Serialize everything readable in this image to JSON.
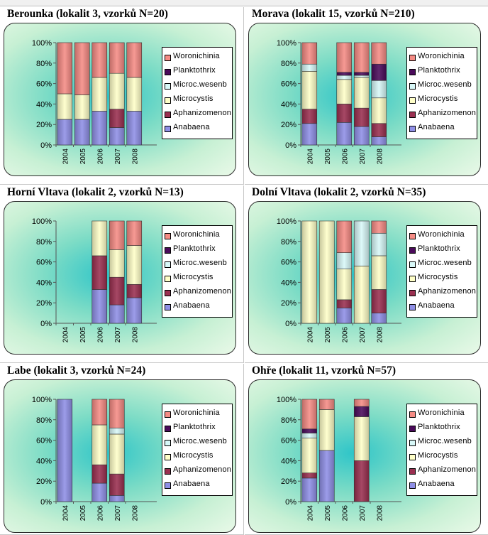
{
  "colors": {
    "Woronichinia": "#f58b84",
    "Planktothrix": "#4a0a5a",
    "Microc.wesenb": "#d8f8f8",
    "Microcystis": "#ffffc8",
    "Aphanizomenon": "#9a2f50",
    "Anabaena": "#8f8fe6"
  },
  "chart_data": [
    {
      "type": "bar",
      "stacked": true,
      "title": "Berounka (lokalit 3, vzorků N=20)",
      "categories": [
        "2004",
        "2005",
        "2006",
        "2007",
        "2008"
      ],
      "yticks": [
        "0%",
        "20%",
        "40%",
        "60%",
        "80%",
        "100%"
      ],
      "ylim": [
        0,
        100
      ],
      "legend": [
        "Woronichinia",
        "Planktothrix",
        "Microc.wesenb",
        "Microcystis",
        "Aphanizomenon",
        "Anabaena"
      ],
      "series": [
        {
          "name": "Anabaena",
          "values": [
            25,
            25,
            33,
            17,
            33
          ]
        },
        {
          "name": "Aphanizomenon",
          "values": [
            0,
            0,
            0,
            18,
            0
          ]
        },
        {
          "name": "Microcystis",
          "values": [
            25,
            24,
            33,
            35,
            33
          ]
        },
        {
          "name": "Microc.wesenb",
          "values": [
            0,
            0,
            0,
            0,
            0
          ]
        },
        {
          "name": "Planktothrix",
          "values": [
            0,
            0,
            0,
            0,
            0
          ]
        },
        {
          "name": "Woronichinia",
          "values": [
            50,
            51,
            34,
            30,
            34
          ]
        }
      ]
    },
    {
      "type": "bar",
      "stacked": true,
      "title": "Morava (lokalit 15, vzorků N=210)",
      "categories": [
        "2004",
        "2005",
        "2006",
        "2007",
        "2008"
      ],
      "yticks": [
        "0%",
        "20%",
        "40%",
        "60%",
        "80%",
        "100%"
      ],
      "ylim": [
        0,
        100
      ],
      "legend": [
        "Woronichinia",
        "Planktothrix",
        "Microc.wesenb",
        "Microcystis",
        "Aphanizomenon",
        "Anabaena"
      ],
      "series": [
        {
          "name": "Anabaena",
          "values": [
            21,
            0,
            22,
            18,
            8
          ]
        },
        {
          "name": "Aphanizomenon",
          "values": [
            14,
            0,
            18,
            18,
            13
          ]
        },
        {
          "name": "Microcystis",
          "values": [
            37,
            0,
            24,
            30,
            25
          ]
        },
        {
          "name": "Microc.wesenb",
          "values": [
            7,
            0,
            4,
            2,
            17
          ]
        },
        {
          "name": "Planktothrix",
          "values": [
            0,
            0,
            3,
            3,
            16
          ]
        },
        {
          "name": "Woronichinia",
          "values": [
            21,
            0,
            29,
            29,
            21
          ]
        }
      ]
    },
    {
      "type": "bar",
      "stacked": true,
      "title": "Horní Vltava (lokalit 2, vzorků N=13)",
      "categories": [
        "2004",
        "2005",
        "2006",
        "2007",
        "2008"
      ],
      "yticks": [
        "0%",
        "20%",
        "40%",
        "60%",
        "80%",
        "100%"
      ],
      "ylim": [
        0,
        100
      ],
      "legend": [
        "Woronichinia",
        "Planktothrix",
        "Microc.wesenb",
        "Microcystis",
        "Aphanizomenon",
        "Anabaena"
      ],
      "series": [
        {
          "name": "Anabaena",
          "values": [
            0,
            0,
            33,
            18,
            25
          ]
        },
        {
          "name": "Aphanizomenon",
          "values": [
            0,
            0,
            33,
            27,
            13
          ]
        },
        {
          "name": "Microcystis",
          "values": [
            0,
            0,
            34,
            27,
            38
          ]
        },
        {
          "name": "Microc.wesenb",
          "values": [
            0,
            0,
            0,
            0,
            0
          ]
        },
        {
          "name": "Planktothrix",
          "values": [
            0,
            0,
            0,
            0,
            0
          ]
        },
        {
          "name": "Woronichinia",
          "values": [
            0,
            0,
            0,
            28,
            24
          ]
        }
      ]
    },
    {
      "type": "bar",
      "stacked": true,
      "title": "Dolní Vltava (lokalit 2, vzorků N=35)",
      "categories": [
        "2004",
        "2005",
        "2006",
        "2007",
        "2008"
      ],
      "yticks": [
        "0%",
        "20%",
        "40%",
        "60%",
        "80%",
        "100%"
      ],
      "ylim": [
        0,
        100
      ],
      "legend": [
        "Woronichinia",
        "Planktothrix",
        "Microc.wesenb",
        "Microcystis",
        "Aphanizomenon",
        "Anabaena"
      ],
      "series": [
        {
          "name": "Anabaena",
          "values": [
            0,
            0,
            15,
            0,
            10
          ]
        },
        {
          "name": "Aphanizomenon",
          "values": [
            0,
            0,
            8,
            0,
            23
          ]
        },
        {
          "name": "Microcystis",
          "values": [
            100,
            100,
            30,
            56,
            33
          ]
        },
        {
          "name": "Microc.wesenb",
          "values": [
            0,
            0,
            16,
            44,
            22
          ]
        },
        {
          "name": "Planktothrix",
          "values": [
            0,
            0,
            0,
            0,
            0
          ]
        },
        {
          "name": "Woronichinia",
          "values": [
            0,
            0,
            31,
            0,
            12
          ]
        }
      ]
    },
    {
      "type": "bar",
      "stacked": true,
      "title": "Labe (lokalit 3, vzorků N=24)",
      "categories": [
        "2004",
        "2005",
        "2006",
        "2007",
        "2008"
      ],
      "yticks": [
        "0%",
        "20%",
        "40%",
        "60%",
        "80%",
        "100%"
      ],
      "ylim": [
        0,
        100
      ],
      "legend": [
        "Woronichinia",
        "Planktothrix",
        "Microc.wesenb",
        "Microcystis",
        "Aphanizomenon",
        "Anabaena"
      ],
      "series": [
        {
          "name": "Anabaena",
          "values": [
            100,
            0,
            18,
            6,
            0
          ]
        },
        {
          "name": "Aphanizomenon",
          "values": [
            0,
            0,
            18,
            21,
            0
          ]
        },
        {
          "name": "Microcystis",
          "values": [
            0,
            0,
            39,
            39,
            0
          ]
        },
        {
          "name": "Microc.wesenb",
          "values": [
            0,
            0,
            0,
            6,
            0
          ]
        },
        {
          "name": "Planktothrix",
          "values": [
            0,
            0,
            0,
            0,
            0
          ]
        },
        {
          "name": "Woronichinia",
          "values": [
            0,
            0,
            25,
            28,
            0
          ]
        }
      ]
    },
    {
      "type": "bar",
      "stacked": true,
      "title": "Ohře (lokalit 11, vzorků N=57)",
      "categories": [
        "2004",
        "2005",
        "2006",
        "2007",
        "2008"
      ],
      "yticks": [
        "0%",
        "20%",
        "40%",
        "60%",
        "80%",
        "100%"
      ],
      "ylim": [
        0,
        100
      ],
      "legend": [
        "Woronichinia",
        "Planktothrix",
        "Microc.wesenb",
        "Microcystis",
        "Aphanizomenon",
        "Anabaena"
      ],
      "series": [
        {
          "name": "Anabaena",
          "values": [
            23,
            50,
            0,
            0,
            0
          ]
        },
        {
          "name": "Aphanizomenon",
          "values": [
            5,
            0,
            0,
            40,
            0
          ]
        },
        {
          "name": "Microcystis",
          "values": [
            34,
            40,
            0,
            43,
            0
          ]
        },
        {
          "name": "Microc.wesenb",
          "values": [
            5,
            0,
            0,
            0,
            0
          ]
        },
        {
          "name": "Planktothrix",
          "values": [
            4,
            0,
            0,
            10,
            0
          ]
        },
        {
          "name": "Woronichinia",
          "values": [
            29,
            10,
            0,
            7,
            0
          ]
        }
      ]
    }
  ]
}
